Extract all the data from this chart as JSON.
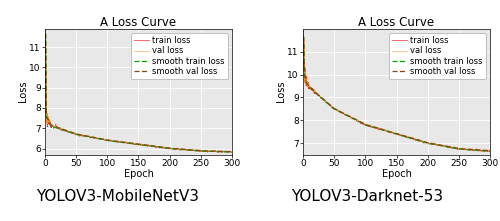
{
  "title": "A Loss Curve",
  "xlabel": "Epoch",
  "ylabel": "Loss",
  "xlim": [
    0,
    300
  ],
  "xticks": [
    0,
    50,
    100,
    150,
    200,
    250,
    300
  ],
  "plot1": {
    "ylim": [
      5.7,
      11.9
    ],
    "yticks": [
      6,
      7,
      8,
      9,
      10,
      11
    ],
    "spike_x": [
      0,
      1,
      2,
      5,
      10,
      20,
      50,
      100,
      150,
      200,
      250,
      300
    ],
    "smooth_y": [
      11.6,
      11.65,
      7.55,
      7.4,
      7.1,
      7.0,
      6.7,
      6.4,
      6.2,
      6.0,
      5.88,
      5.83
    ],
    "val_y": [
      11.6,
      11.62,
      7.6,
      7.45,
      7.15,
      7.05,
      6.72,
      6.42,
      6.22,
      6.02,
      5.9,
      5.85
    ],
    "label": "YOLOV3-MobileNetV3"
  },
  "plot2": {
    "ylim": [
      6.5,
      12.0
    ],
    "yticks": [
      7,
      8,
      9,
      10,
      11
    ],
    "spike_x": [
      0,
      1,
      2,
      5,
      10,
      20,
      50,
      100,
      150,
      200,
      250,
      300
    ],
    "smooth_y": [
      11.6,
      11.65,
      10.0,
      9.65,
      9.45,
      9.2,
      8.5,
      7.8,
      7.4,
      7.0,
      6.75,
      6.65
    ],
    "val_y": [
      11.6,
      11.62,
      10.05,
      9.68,
      9.48,
      9.22,
      8.52,
      7.82,
      7.42,
      7.02,
      6.77,
      6.67
    ],
    "label": "YOLOV3-Darknet-53"
  },
  "legend_entries": [
    "train loss",
    "val loss",
    "smooth train loss",
    "smooth val loss"
  ],
  "colors": {
    "train": "#FF0000",
    "val": "#FFA040",
    "smooth_train": "#00AA00",
    "smooth_val": "#8B4513"
  },
  "label_fontsize": 11,
  "title_fontsize": 8.5,
  "legend_fontsize": 6.0,
  "axis_label_fontsize": 7,
  "tick_fontsize": 6.5,
  "bg_color": "#e8e8e8"
}
